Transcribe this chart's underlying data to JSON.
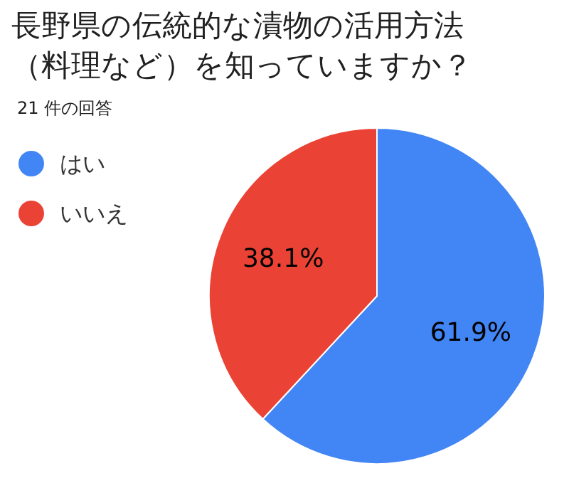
{
  "chart_data": {
    "type": "pie",
    "title": "長野県の伝統的な漬物の活用方法（料理など）を知っていますか？",
    "subtitle": "21 件の回答",
    "categories": [
      "はい",
      "いいえ"
    ],
    "values": [
      61.9,
      38.1
    ],
    "value_labels": [
      "61.9%",
      "38.1%"
    ],
    "colors": [
      "#4285f4",
      "#ea4335"
    ],
    "legend": "top left"
  }
}
